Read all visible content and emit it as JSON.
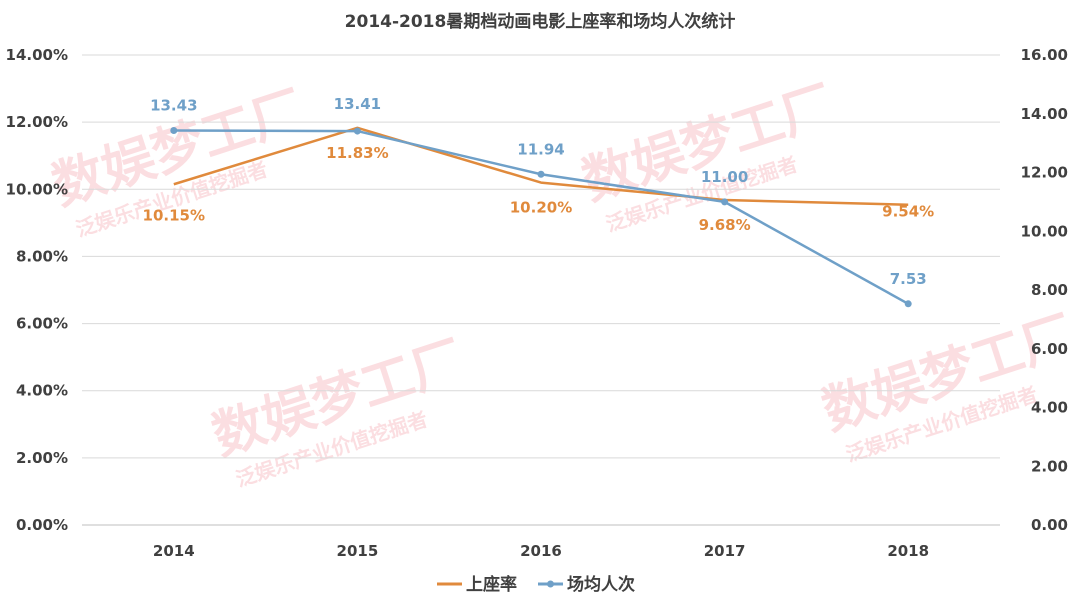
{
  "chart_data": {
    "type": "line",
    "title": "2014-2018暑期档动画电影上座率和场均人次统计",
    "categories": [
      "2014",
      "2015",
      "2016",
      "2017",
      "2018"
    ],
    "series": [
      {
        "name": "上座率",
        "axis": "left",
        "values": [
          10.15,
          11.83,
          10.2,
          9.68,
          9.54
        ],
        "labels": [
          "10.15%",
          "11.83%",
          "10.20%",
          "9.68%",
          "9.54%"
        ],
        "color": "#e08a3c"
      },
      {
        "name": "场均人次",
        "axis": "right",
        "values": [
          13.43,
          13.41,
          11.94,
          11.0,
          7.53
        ],
        "labels": [
          "13.43",
          "13.41",
          "11.94",
          "11.00",
          "7.53"
        ],
        "color": "#6fa0c8"
      }
    ],
    "y_left": {
      "min": 0,
      "max": 14,
      "ticks": [
        "0.00%",
        "2.00%",
        "4.00%",
        "6.00%",
        "8.00%",
        "10.00%",
        "12.00%",
        "14.00%"
      ]
    },
    "y_right": {
      "min": 0,
      "max": 16,
      "ticks": [
        "0.00",
        "2.00",
        "4.00",
        "6.00",
        "8.00",
        "10.00",
        "12.00",
        "14.00",
        "16.00"
      ]
    },
    "grid": true,
    "legend": "bottom"
  },
  "watermark": {
    "brand": "数娱梦工厂",
    "tagline": "泛娱乐产业价值挖掘者",
    "color": "#f06c7c"
  }
}
